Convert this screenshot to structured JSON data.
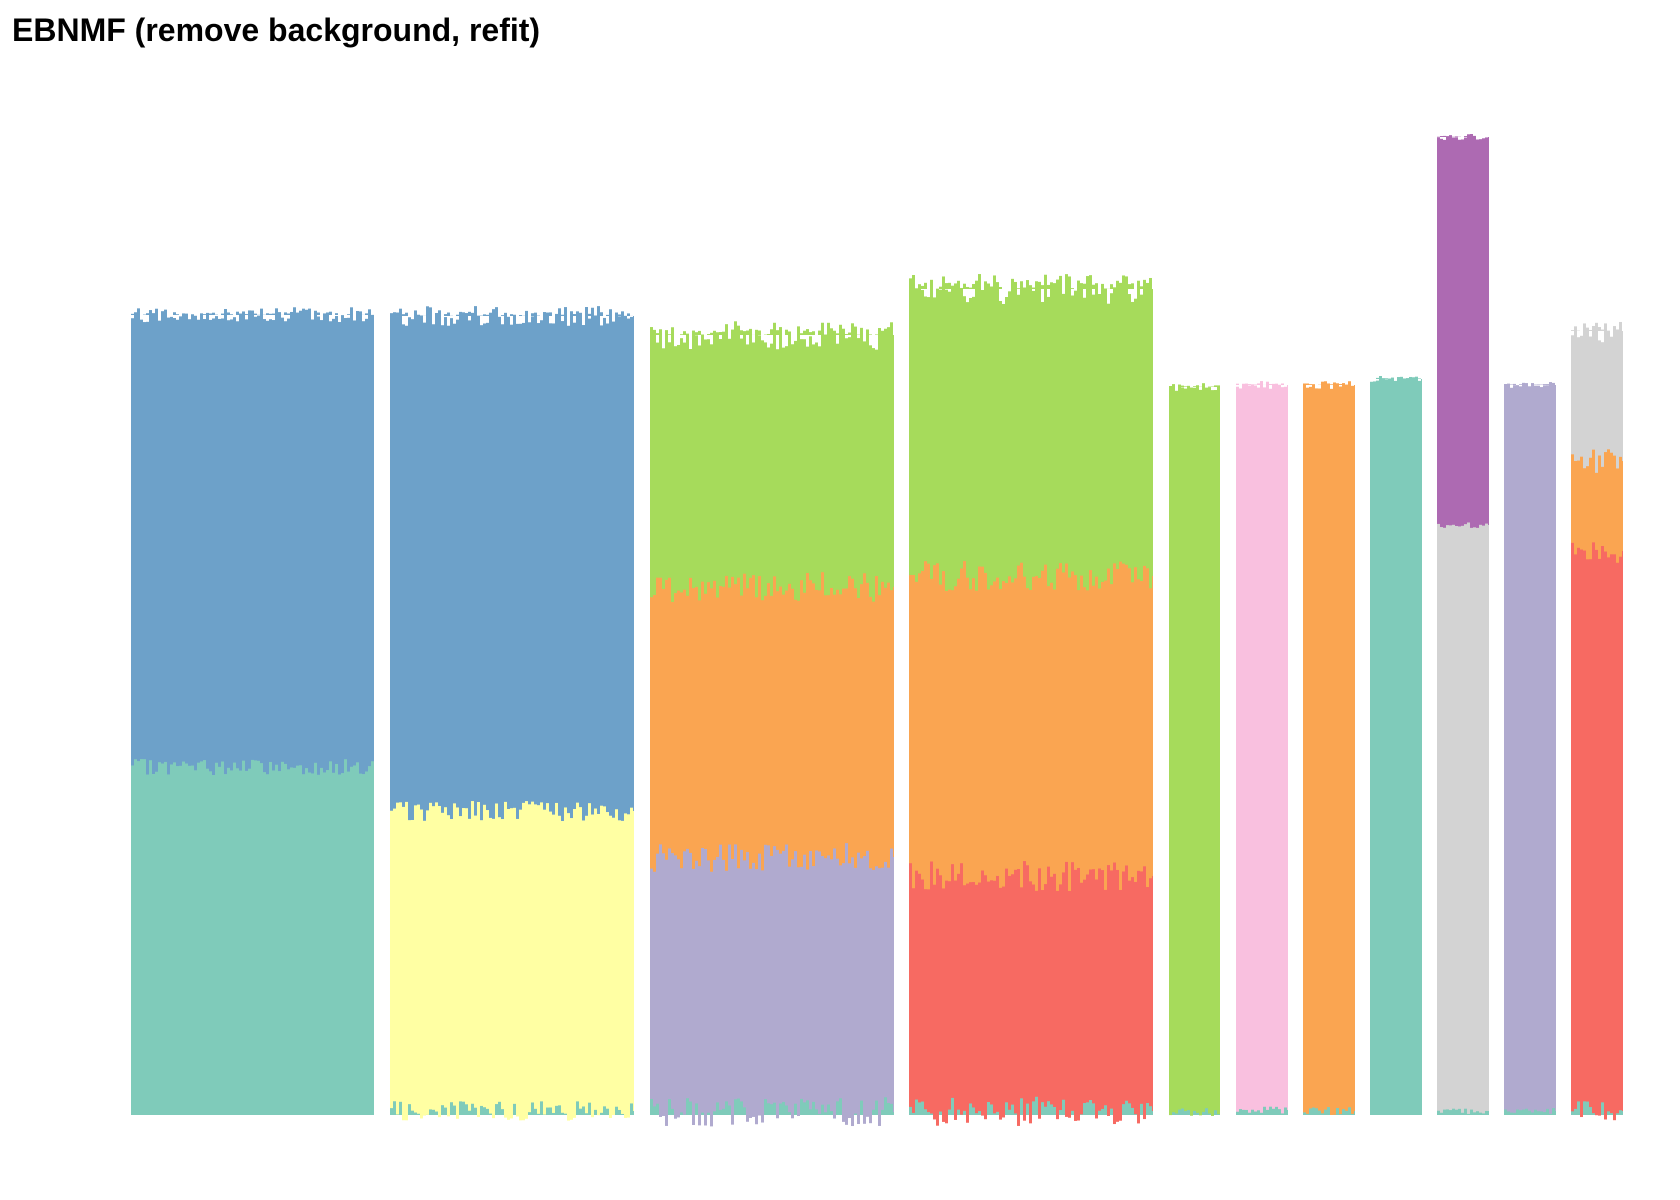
{
  "chart_data": {
    "type": "bar",
    "subtype": "stacked structure plot",
    "title": "EBNMF (remove background, refit)",
    "xlabel": "",
    "ylabel": "",
    "axes_visible": false,
    "grid": false,
    "legend": "none",
    "ylim": [
      0,
      1.0
    ],
    "factors": [
      {
        "id": "f1",
        "color": "#7FCBBA"
      },
      {
        "id": "f2",
        "color": "#FFFFA3"
      },
      {
        "id": "f3",
        "color": "#B0AACF"
      },
      {
        "id": "f4",
        "color": "#F76A62"
      },
      {
        "id": "f5",
        "color": "#6DA1C9"
      },
      {
        "id": "f6",
        "color": "#FAA551"
      },
      {
        "id": "f7",
        "color": "#A6DB5B"
      },
      {
        "id": "f8",
        "color": "#F9C0DF"
      },
      {
        "id": "f9",
        "color": "#D3D3D3"
      },
      {
        "id": "f10",
        "color": "#AD6AB2"
      }
    ],
    "groups": [
      {
        "segments": [
          {
            "factor": "f1",
            "value": 0.348
          },
          {
            "factor": "f5",
            "value": 0.452
          }
        ],
        "jitter": 0.008
      },
      {
        "segments": [
          {
            "factor": "f1",
            "value": 0.004
          },
          {
            "factor": "f2",
            "value": 0.3
          },
          {
            "factor": "f5",
            "value": 0.495
          }
        ],
        "jitter": 0.01
      },
      {
        "segments": [
          {
            "factor": "f1",
            "value": 0.003
          },
          {
            "factor": "f3",
            "value": 0.255
          },
          {
            "factor": "f6",
            "value": 0.27
          },
          {
            "factor": "f7",
            "value": 0.252
          }
        ],
        "jitter": 0.015
      },
      {
        "segments": [
          {
            "factor": "f1",
            "value": 0.004
          },
          {
            "factor": "f4",
            "value": 0.235
          },
          {
            "factor": "f6",
            "value": 0.3
          },
          {
            "factor": "f7",
            "value": 0.287
          }
        ],
        "jitter": 0.015
      },
      {
        "segments": [
          {
            "factor": "f1",
            "value": 0.003
          },
          {
            "factor": "f7",
            "value": 0.725
          }
        ],
        "jitter": 0.004
      },
      {
        "segments": [
          {
            "factor": "f1",
            "value": 0.005
          },
          {
            "factor": "f8",
            "value": 0.725
          }
        ],
        "jitter": 0.004
      },
      {
        "segments": [
          {
            "factor": "f1",
            "value": 0.004
          },
          {
            "factor": "f6",
            "value": 0.726
          }
        ],
        "jitter": 0.004
      },
      {
        "segments": [
          {
            "factor": "f1",
            "value": 0.736
          }
        ],
        "jitter": 0.003
      },
      {
        "segments": [
          {
            "factor": "f1",
            "value": 0.004
          },
          {
            "factor": "f9",
            "value": 0.586
          },
          {
            "factor": "f10",
            "value": 0.388
          }
        ],
        "jitter": 0.003
      },
      {
        "segments": [
          {
            "factor": "f1",
            "value": 0.004
          },
          {
            "factor": "f3",
            "value": 0.726
          }
        ],
        "jitter": 0.003
      },
      {
        "segments": [
          {
            "factor": "f1",
            "value": 0.004
          },
          {
            "factor": "f4",
            "value": 0.56
          },
          {
            "factor": "f6",
            "value": 0.09
          },
          {
            "factor": "f9",
            "value": 0.13
          }
        ],
        "jitter": 0.012
      }
    ]
  }
}
